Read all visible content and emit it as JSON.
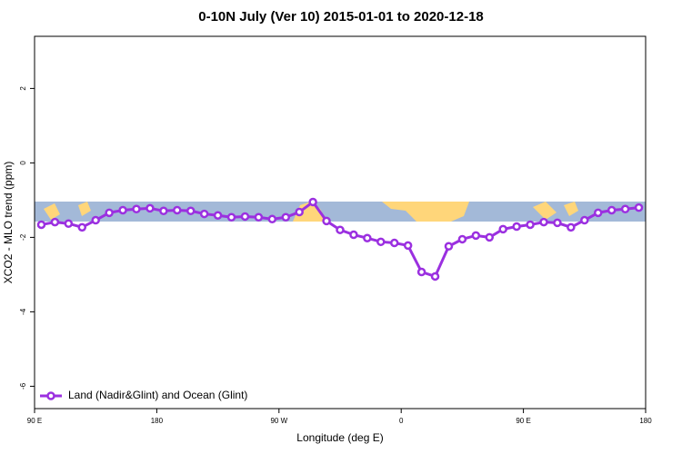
{
  "chart_data": {
    "type": "line",
    "title": "0-10N July (Ver 10)   2015-01-01 to 2020-12-18",
    "xlabel": "Longitude (deg E)",
    "ylabel": "XCO2 - MLO trend (ppm)",
    "x": [
      95,
      105,
      115,
      125,
      135,
      145,
      155,
      165,
      175,
      185,
      195,
      205,
      215,
      225,
      235,
      245,
      255,
      265,
      275,
      285,
      295,
      305,
      315,
      325,
      335,
      345,
      355,
      365,
      375,
      385,
      395,
      405,
      415,
      425,
      435,
      445,
      455,
      465,
      475,
      485,
      495,
      505,
      515,
      525,
      535
    ],
    "series": [
      {
        "name": "Land (Nadir&Glint) and Ocean (Glint)",
        "color": "#9b30e0",
        "values": [
          -1.66,
          -1.59,
          -1.63,
          -1.73,
          -1.54,
          -1.34,
          -1.27,
          -1.24,
          -1.22,
          -1.29,
          -1.27,
          -1.29,
          -1.37,
          -1.41,
          -1.46,
          -1.44,
          -1.46,
          -1.51,
          -1.46,
          -1.32,
          -1.05,
          -1.56,
          -1.8,
          -1.93,
          -2.02,
          -2.12,
          -2.15,
          -2.22,
          -2.93,
          -3.05,
          -2.24,
          -2.05,
          -1.95,
          -2.0,
          -1.78,
          -1.71,
          -1.66,
          -1.59,
          -1.61,
          -1.73,
          -1.54,
          -1.34,
          -1.27,
          -1.24,
          -1.2
        ]
      }
    ],
    "xlim": [
      90,
      540
    ],
    "xticks": [
      {
        "value": 90,
        "label": "90 E"
      },
      {
        "value": 180,
        "label": "180"
      },
      {
        "value": 270,
        "label": "90 W"
      },
      {
        "value": 360,
        "label": "0"
      },
      {
        "value": 450,
        "label": "90 E"
      },
      {
        "value": 540,
        "label": "180"
      }
    ],
    "ylim": [
      -6.6,
      3.4
    ],
    "yticks": [
      -6,
      -4,
      -2,
      0,
      2
    ],
    "legend": "bottom-left"
  }
}
